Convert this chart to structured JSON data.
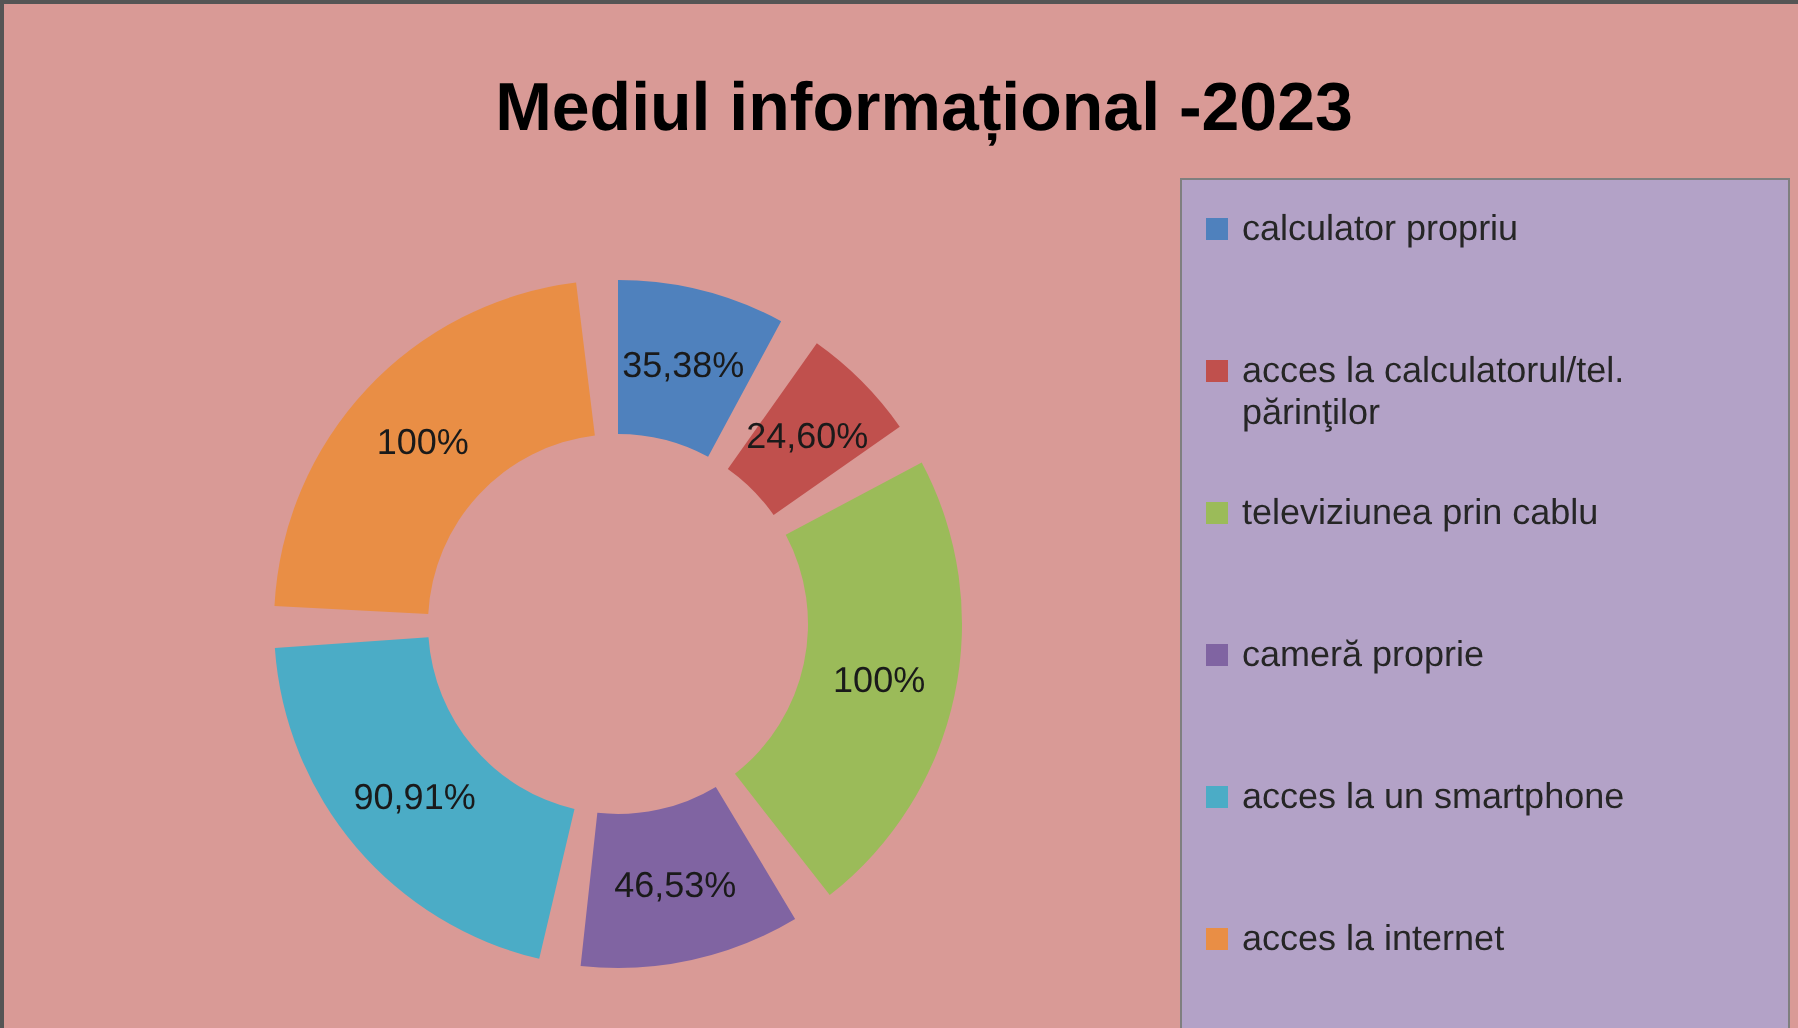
{
  "chart_data": {
    "type": "donut",
    "title": "Mediul informațional -2023",
    "categories": [
      "calculator propriu",
      "acces la calculatorul/tel. părinţilor",
      "televiziunea prin cablu",
      "cameră proprie",
      "acces la un smartphone",
      "acces la internet"
    ],
    "values": [
      35.38,
      24.6,
      100,
      46.53,
      90.91,
      100
    ],
    "value_labels": [
      "35,38%",
      "24,60%",
      "100%",
      "46,53%",
      "90,91%",
      "100%"
    ],
    "colors": [
      "#4f81bd",
      "#c0504d",
      "#9bbb59",
      "#8064a2",
      "#4bacc6",
      "#e98e45"
    ],
    "legend": "right"
  }
}
